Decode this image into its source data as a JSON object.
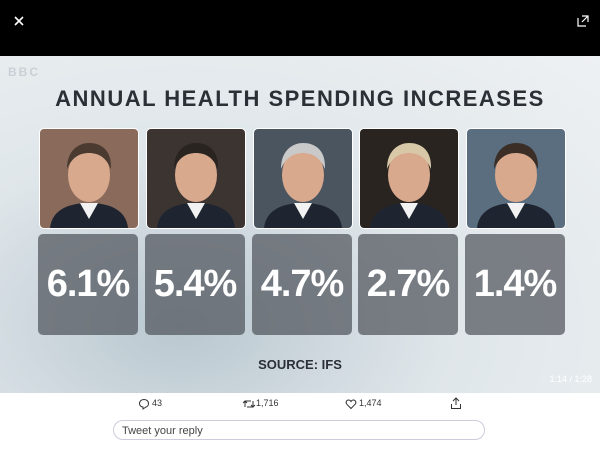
{
  "video": {
    "logo": "BBC",
    "title": "ANNUAL HEALTH SPENDING INCREASES",
    "tiles": [
      {
        "value": "6.1%"
      },
      {
        "value": "5.4%"
      },
      {
        "value": "4.7%"
      },
      {
        "value": "2.7%"
      },
      {
        "value": "1.4%"
      }
    ],
    "source": "SOURCE: IFS"
  },
  "player": {
    "time": "1:14 / 1:28"
  },
  "actions": {
    "replies": "43",
    "retweets": "1,716",
    "likes": "1,474"
  },
  "reply_box": {
    "placeholder": "Tweet your reply"
  }
}
